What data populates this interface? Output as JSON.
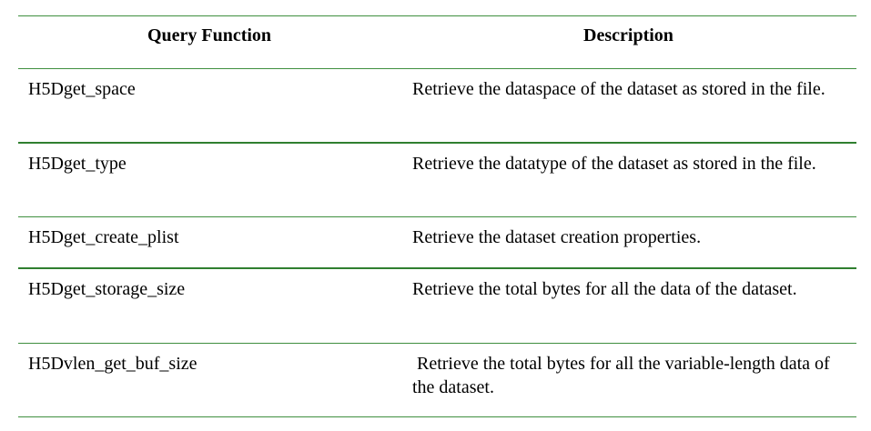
{
  "table": {
    "headers": {
      "function": "Query Function",
      "description": "Description"
    },
    "rows": [
      {
        "function": "H5Dget_space",
        "description": "Retrieve the dataspace of the dataset as stored in the file."
      },
      {
        "function": "H5Dget_type",
        "description": "Retrieve the datatype of the dataset as stored in the file."
      },
      {
        "function": "H5Dget_create_plist",
        "description": "Retrieve the dataset creation properties."
      },
      {
        "function": "H5Dget_storage_size",
        "description": "Retrieve the total bytes for all the data of the dataset."
      },
      {
        "function": "H5Dvlen_get_buf_size",
        "description": " Retrieve the total bytes for all the variable-length data of the dataset."
      }
    ]
  },
  "colors": {
    "rule": "#3f8f3f",
    "text": "#000000"
  }
}
